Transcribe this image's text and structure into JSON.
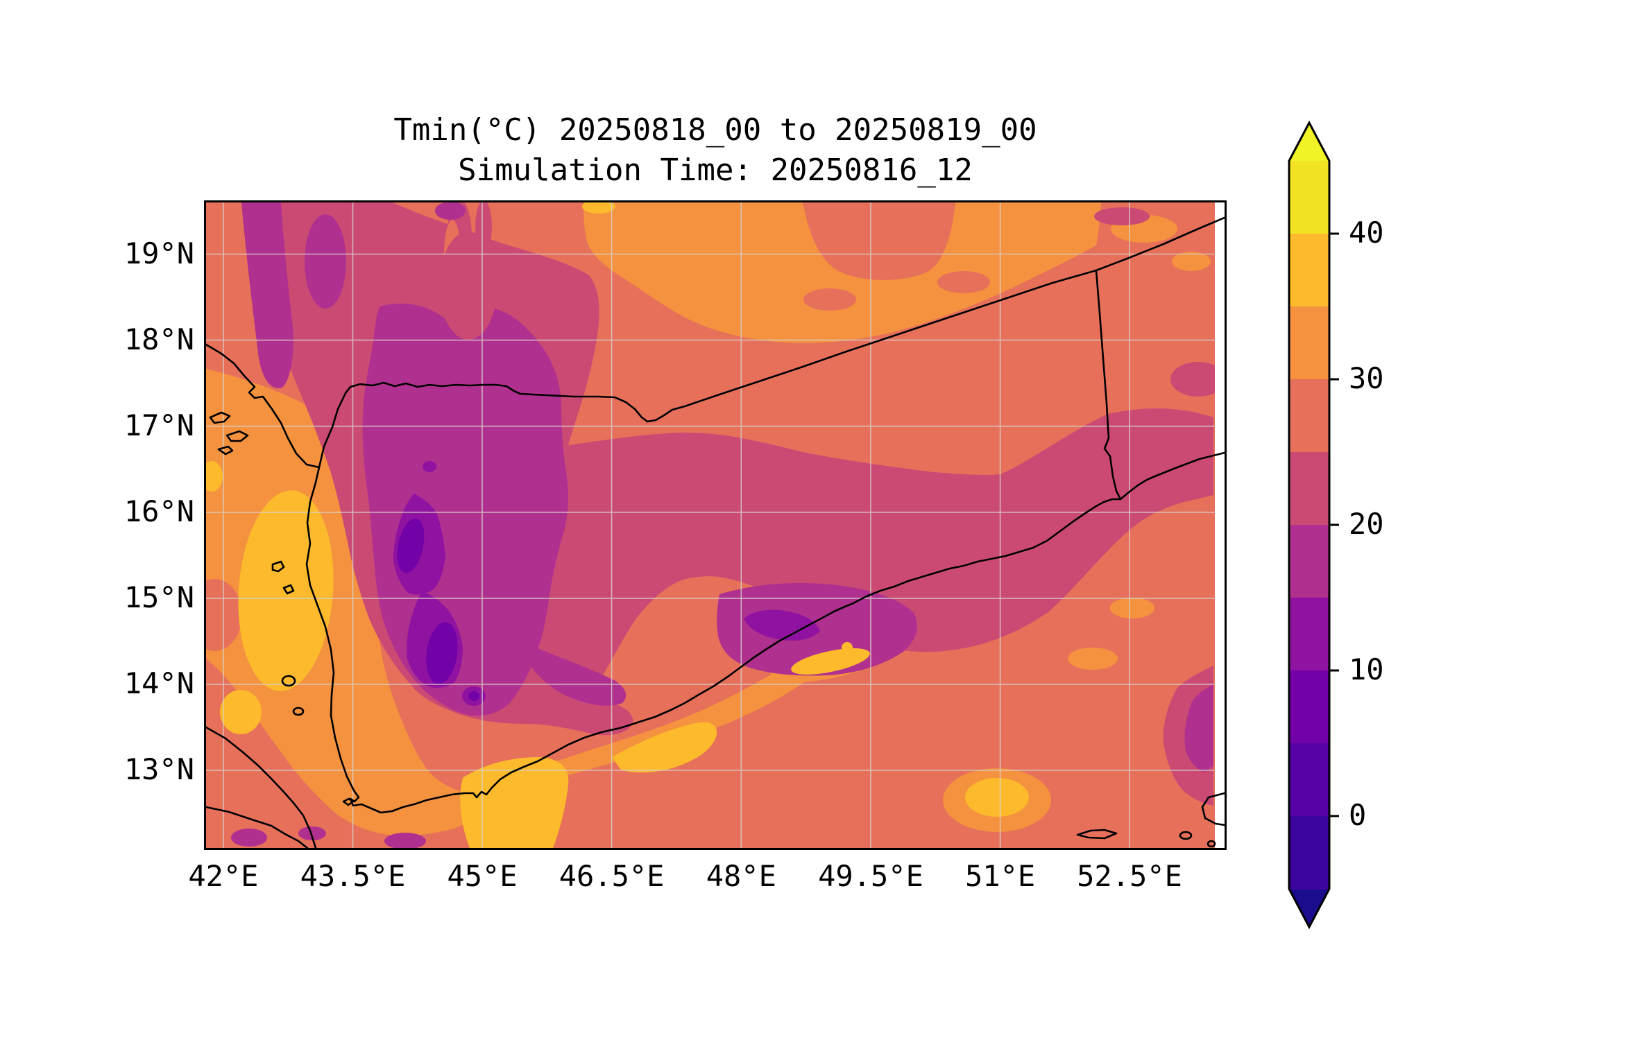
{
  "title": {
    "line1": "Tmin(°C) 20250818_00 to 20250819_00",
    "line2": "Simulation Time: 20250816_12"
  },
  "map": {
    "y_axis": {
      "labels": [
        "19°N",
        "18°N",
        "17°N",
        "16°N",
        "15°N",
        "14°N",
        "13°N"
      ]
    },
    "x_axis": {
      "labels": [
        "42°E",
        "43.5°E",
        "45°E",
        "46.5°E",
        "48°E",
        "49.5°E",
        "51°E",
        "52.5°E"
      ]
    }
  },
  "colorbar": {
    "tick_labels": [
      "40",
      "30",
      "20",
      "10",
      "0"
    ],
    "band_colors_top_to_bottom": [
      "#f1e324",
      "#fcba2c",
      "#f4923f",
      "#e7705a",
      "#cb4a74",
      "#b0308f",
      "#8f12a1",
      "#7301a8",
      "#5601a4",
      "#3b049d"
    ],
    "over_color": "#f0f326",
    "under_color": "#1b0c8e"
  },
  "colors": {
    "over": "#f0f326",
    "b40": "#f1e324",
    "b35": "#fcba2c",
    "b30": "#f4923f",
    "b25": "#e7705a",
    "b20": "#cb4a74",
    "b15": "#b0308f",
    "b10": "#8f12a1",
    "b5": "#7301a8",
    "b0": "#5601a4",
    "bn5": "#3b049d",
    "under": "#1b0c8e",
    "grid": "#d8d2cc",
    "line": "#000000"
  },
  "chart_data": {
    "type": "filled-contour-map",
    "title": "Tmin(°C) 20250818_00 to 20250819_00",
    "subtitle": "Simulation Time: 20250816_12",
    "variable": "Tmin",
    "units": "°C",
    "valid_period_start": "20250818_00",
    "valid_period_end": "20250819_00",
    "simulation_time": "20250816_12",
    "region": "Yemen / southern Arabian Peninsula with Red Sea and Gulf of Aden",
    "lon_range_deg_east": [
      41.8,
      53.6
    ],
    "lat_range_deg_north": [
      12.1,
      19.6
    ],
    "lon_tick_values": [
      42,
      43.5,
      45,
      46.5,
      48,
      49.5,
      51,
      52.5
    ],
    "lat_tick_values": [
      19,
      18,
      17,
      16,
      15,
      14,
      13
    ],
    "contour_levels": [
      -5,
      0,
      5,
      10,
      15,
      20,
      25,
      30,
      35,
      40,
      45
    ],
    "colorbar_tick_values": [
      40,
      30,
      20,
      10,
      0
    ],
    "colormap": "plasma",
    "extend": "both",
    "gridlines": true,
    "overlays": [
      "coastlines",
      "country borders (Saudi Arabia / Yemen / Oman)",
      "islands"
    ],
    "field_summary": [
      {
        "range_c": "5-10",
        "where": "small cores in western Yemen highlands near 44.3E,15.7N and 44.5E,14.6N"
      },
      {
        "range_c": "10-15",
        "where": "purple cores of western highlands (44-45E, 14-16.3N) and small patch near 48.5E,14.9N"
      },
      {
        "range_c": "15-20",
        "where": "highland spine 43.3-46E from 13.6N to 19.6N and eastern plateau core 47.5-50.5E, 14.5-15.3N"
      },
      {
        "range_c": "20-25",
        "where": "broad NW highland mass and ENE band across Hadhramaut to 53.6E; patch at right edge 13.2-14.2N"
      },
      {
        "range_c": "25-30",
        "where": "background: deserts, most sea areas"
      },
      {
        "range_c": "30-35",
        "where": "Red Sea Tihama coastal strip, Gulf of Aden coast, Saudi Empty Quarter band north of border"
      },
      {
        "range_c": "35-40",
        "where": "hot spots along Red Sea coast 42-43.2E, Aden area, coastal pockets 46.8-50E, SE offshore blob near 50.5E,13N"
      }
    ]
  }
}
